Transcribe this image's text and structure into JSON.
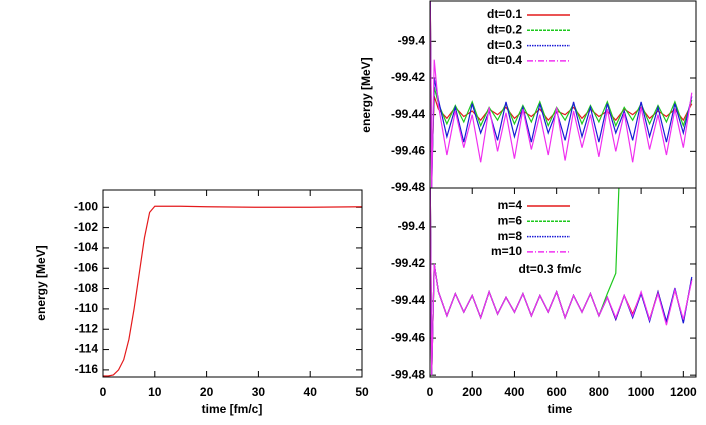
{
  "chart_data": [
    {
      "type": "line",
      "xlabel": "time [fm/c]",
      "ylabel": "energy  [MeV]",
      "xlim": [
        0,
        50
      ],
      "ylim": [
        -116.7,
        -98.3
      ],
      "xticks": [
        0,
        10,
        20,
        30,
        40,
        50
      ],
      "yticks": [
        -100,
        -102,
        -104,
        -106,
        -108,
        -110,
        -112,
        -114,
        -116
      ],
      "x": [
        0,
        1,
        2,
        3,
        4,
        5,
        6,
        7,
        8,
        9,
        10,
        12,
        15,
        20,
        30,
        40,
        50
      ],
      "series": [
        {
          "color": "#e41a1c",
          "values": [
            -116.6,
            -116.6,
            -116.5,
            -116,
            -115,
            -113,
            -110,
            -106.5,
            -103,
            -100.5,
            -99.9,
            -99.9,
            -99.9,
            -99.95,
            -100,
            -100,
            -99.95
          ]
        }
      ]
    },
    {
      "type": "line",
      "ylabel": "energy [MeV]",
      "xlim": [
        0,
        1260
      ],
      "ylim": [
        -99.48,
        -99.378
      ],
      "yticks": [
        -99.4,
        -99.42,
        -99.44,
        -99.46,
        -99.48
      ],
      "x": [
        0,
        8,
        20,
        40,
        80,
        120,
        160,
        200,
        240,
        280,
        320,
        360,
        400,
        440,
        480,
        520,
        560,
        600,
        640,
        680,
        720,
        760,
        800,
        840,
        880,
        920,
        960,
        1000,
        1040,
        1080,
        1120,
        1160,
        1200,
        1240
      ],
      "series": [
        {
          "name": "dt=0.1",
          "color": "#e41a1c",
          "values": [
            -99.36,
            -99.47,
            -99.43,
            -99.437,
            -99.442,
            -99.436,
            -99.441,
            -99.438,
            -99.443,
            -99.437,
            -99.44,
            -99.436,
            -99.442,
            -99.438,
            -99.441,
            -99.437,
            -99.443,
            -99.438,
            -99.44,
            -99.436,
            -99.442,
            -99.437,
            -99.441,
            -99.438,
            -99.443,
            -99.437,
            -99.44,
            -99.436,
            -99.442,
            -99.438,
            -99.441,
            -99.437,
            -99.443,
            -99.434
          ]
        },
        {
          "name": "dt=0.2",
          "color": "#1ec81e",
          "values": [
            -99.36,
            -99.475,
            -99.425,
            -99.434,
            -99.445,
            -99.435,
            -99.444,
            -99.433,
            -99.446,
            -99.436,
            -99.443,
            -99.434,
            -99.445,
            -99.435,
            -99.444,
            -99.433,
            -99.446,
            -99.436,
            -99.443,
            -99.434,
            -99.445,
            -99.435,
            -99.444,
            -99.433,
            -99.446,
            -99.436,
            -99.443,
            -99.434,
            -99.445,
            -99.435,
            -99.444,
            -99.433,
            -99.446,
            -99.432
          ]
        },
        {
          "name": "dt=0.3",
          "color": "#1a1ad6",
          "values": [
            -99.36,
            -99.48,
            -99.42,
            -99.432,
            -99.452,
            -99.436,
            -99.455,
            -99.434,
            -99.45,
            -99.438,
            -99.454,
            -99.433,
            -99.452,
            -99.436,
            -99.455,
            -99.434,
            -99.45,
            -99.438,
            -99.454,
            -99.433,
            -99.452,
            -99.436,
            -99.455,
            -99.434,
            -99.45,
            -99.438,
            -99.454,
            -99.433,
            -99.452,
            -99.436,
            -99.455,
            -99.434,
            -99.45,
            -99.43
          ]
        },
        {
          "name": "dt=0.4",
          "color": "#f030f0",
          "values": [
            -99.36,
            -99.48,
            -99.41,
            -99.435,
            -99.462,
            -99.438,
            -99.458,
            -99.44,
            -99.466,
            -99.436,
            -99.46,
            -99.439,
            -99.464,
            -99.437,
            -99.459,
            -99.44,
            -99.462,
            -99.436,
            -99.465,
            -99.438,
            -99.458,
            -99.44,
            -99.463,
            -99.437,
            -99.46,
            -99.439,
            -99.466,
            -99.436,
            -99.459,
            -99.44,
            -99.462,
            -99.437,
            -99.458,
            -99.428
          ]
        }
      ]
    },
    {
      "type": "line",
      "xlabel": "time",
      "annotation": "dt=0.3 fm/c",
      "xlim": [
        0,
        1260
      ],
      "ylim": [
        -99.481,
        -99.379
      ],
      "xticks": [
        0,
        200,
        400,
        600,
        800,
        1000,
        1200
      ],
      "yticks": [
        -99.4,
        -99.42,
        -99.44,
        -99.46,
        -99.48
      ],
      "x": [
        0,
        8,
        20,
        40,
        80,
        120,
        160,
        200,
        240,
        280,
        320,
        360,
        400,
        440,
        480,
        520,
        560,
        600,
        640,
        680,
        720,
        760,
        800,
        840,
        880,
        920,
        960,
        1000,
        1040,
        1080,
        1120,
        1160,
        1200,
        1240
      ],
      "series": [
        {
          "name": "m=4",
          "color": "#e41a1c",
          "values": [
            -99.36,
            -99.48,
            -99.42,
            -99.435,
            -99.448,
            -99.436,
            -99.446,
            -99.437,
            -99.449,
            -99.435,
            -99.447,
            -99.438,
            -99.446,
            -99.436,
            -99.448,
            -99.437,
            -99.446,
            -99.435,
            -99.449,
            -99.437,
            -99.446,
            -99.436,
            -99.448,
            -99.438,
            -99.45,
            -99.437,
            -99.447,
            -99.436,
            -99.45,
            -99.435,
            -99.452,
            -99.434,
            -99.451,
            -99.428
          ]
        },
        {
          "name": "m=6",
          "color": "#1ec81e",
          "values": [
            -99.36,
            -99.48,
            -99.42,
            -99.435,
            -99.448,
            -99.436,
            -99.446,
            -99.437,
            -99.449,
            -99.435,
            -99.447,
            -99.438,
            -99.446,
            -99.436,
            -99.448,
            -99.437,
            -99.446,
            -99.435,
            -99.449,
            -99.437,
            -99.446,
            -99.436,
            -99.448,
            -99.436,
            -99.425,
            -99.3,
            null,
            null,
            null,
            null,
            null,
            null,
            null,
            null
          ]
        },
        {
          "name": "m=8",
          "color": "#1a1ad6",
          "values": [
            -99.36,
            -99.48,
            -99.42,
            -99.435,
            -99.448,
            -99.436,
            -99.446,
            -99.437,
            -99.449,
            -99.435,
            -99.447,
            -99.438,
            -99.446,
            -99.436,
            -99.448,
            -99.437,
            -99.446,
            -99.435,
            -99.449,
            -99.437,
            -99.446,
            -99.436,
            -99.448,
            -99.438,
            -99.45,
            -99.437,
            -99.449,
            -99.436,
            -99.451,
            -99.435,
            -99.451,
            -99.433,
            -99.452,
            -99.427
          ]
        },
        {
          "name": "m=10",
          "color": "#f030f0",
          "values": [
            -99.36,
            -99.48,
            -99.42,
            -99.435,
            -99.448,
            -99.436,
            -99.446,
            -99.437,
            -99.449,
            -99.435,
            -99.447,
            -99.438,
            -99.446,
            -99.436,
            -99.448,
            -99.437,
            -99.446,
            -99.435,
            -99.449,
            -99.437,
            -99.446,
            -99.436,
            -99.448,
            -99.438,
            -99.449,
            -99.437,
            -99.448,
            -99.435,
            -99.45,
            -99.436,
            -99.453,
            -99.434,
            -99.45,
            -99.429
          ]
        }
      ]
    }
  ]
}
